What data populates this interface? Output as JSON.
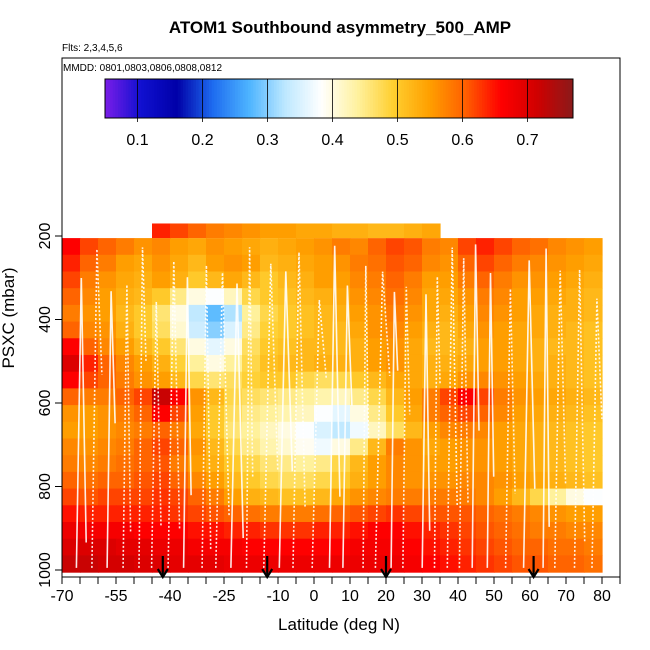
{
  "chart_data": {
    "type": "heatmap",
    "title": "ATOM1 Southbound asymmetry_500_AMP",
    "subtitle_flights": "Flts: 2,3,4,5,6",
    "subtitle_dates": "MMDD: 0801,0803,0806,0808,0812",
    "xlabel": "Latitude (deg N)",
    "ylabel": "PSXC (mbar)",
    "xlim": [
      -70,
      85
    ],
    "ylim": [
      1000,
      0
    ],
    "x_ticks": [
      -70,
      -55,
      -40,
      -25,
      -10,
      0,
      10,
      20,
      30,
      40,
      50,
      60,
      70,
      80
    ],
    "x_ticks_minor": [
      -65,
      -60,
      -50,
      -45,
      -35,
      -30,
      -20,
      -15,
      -5,
      5,
      15,
      25,
      35,
      45,
      55,
      65,
      75,
      85
    ],
    "y_ticks": [
      200,
      400,
      600,
      800,
      1000
    ],
    "colorbar": {
      "min": 0.05,
      "max": 0.77,
      "ticks": [
        0.1,
        0.2,
        0.3,
        0.4,
        0.5,
        0.6,
        0.7
      ],
      "colors": [
        "#7a1de8",
        "#1010d0",
        "#0000a8",
        "#1e6cf0",
        "#4db4ff",
        "#bde8ff",
        "#ffffff",
        "#fff2a0",
        "#ffcf30",
        "#ffa000",
        "#ff6000",
        "#ff0000",
        "#d00000",
        "#8b1a1a"
      ]
    },
    "arrows_latitude": [
      -42,
      -13,
      20,
      61
    ],
    "pressure_levels": [
      225,
      265,
      305,
      345,
      385,
      425,
      465,
      505,
      545,
      585,
      625,
      665,
      705,
      745,
      785,
      825,
      865,
      905,
      945,
      985
    ],
    "latitude_bins": [
      -67.5,
      -62.5,
      -57.5,
      -52.5,
      -47.5,
      -42.5,
      -37.5,
      -32.5,
      -27.5,
      -22.5,
      -17.5,
      -12.5,
      -7.5,
      -2.5,
      2.5,
      7.5,
      12.5,
      17.5,
      22.5,
      27.5,
      32.5,
      37.5,
      42.5,
      47.5,
      52.5,
      57.5,
      62.5,
      67.5,
      72.5,
      77.5
    ],
    "values": [
      [
        0.66,
        0.62,
        0.6,
        0.58,
        0.56,
        0.57,
        0.55,
        0.54,
        0.56,
        0.55,
        0.54,
        0.53,
        0.54,
        0.55,
        0.56,
        0.58,
        0.57,
        0.6,
        0.62,
        0.61,
        0.58,
        0.57,
        0.62,
        0.64,
        0.62,
        0.6,
        0.59,
        0.57,
        0.56,
        0.55
      ],
      [
        0.64,
        0.6,
        0.58,
        0.55,
        0.54,
        0.56,
        0.54,
        0.52,
        0.55,
        0.56,
        0.55,
        0.52,
        0.53,
        0.54,
        0.55,
        0.56,
        0.58,
        0.59,
        0.61,
        0.6,
        0.57,
        0.56,
        0.6,
        0.62,
        0.6,
        0.58,
        0.57,
        0.56,
        0.55,
        0.54
      ],
      [
        0.62,
        0.58,
        0.56,
        0.54,
        0.53,
        0.55,
        0.53,
        0.5,
        0.52,
        0.54,
        0.52,
        0.5,
        0.52,
        0.53,
        0.55,
        0.55,
        0.57,
        0.58,
        0.6,
        0.58,
        0.55,
        0.55,
        0.58,
        0.6,
        0.58,
        0.56,
        0.56,
        0.55,
        0.54,
        0.53
      ],
      [
        0.6,
        0.57,
        0.55,
        0.53,
        0.52,
        0.5,
        0.45,
        0.4,
        0.38,
        0.42,
        0.48,
        0.5,
        0.51,
        0.52,
        0.53,
        0.54,
        0.56,
        0.57,
        0.59,
        0.57,
        0.54,
        0.54,
        0.56,
        0.58,
        0.57,
        0.55,
        0.55,
        0.54,
        0.53,
        0.52
      ],
      [
        0.58,
        0.56,
        0.55,
        0.52,
        0.5,
        0.46,
        0.4,
        0.33,
        0.28,
        0.32,
        0.44,
        0.48,
        0.5,
        0.51,
        0.52,
        0.53,
        0.55,
        0.56,
        0.58,
        0.56,
        0.54,
        0.53,
        0.55,
        0.57,
        0.56,
        0.55,
        0.54,
        0.53,
        0.53,
        0.52
      ],
      [
        0.6,
        0.57,
        0.56,
        0.53,
        0.5,
        0.47,
        0.41,
        0.34,
        0.3,
        0.35,
        0.45,
        0.49,
        0.5,
        0.51,
        0.52,
        0.52,
        0.54,
        0.56,
        0.57,
        0.55,
        0.53,
        0.52,
        0.54,
        0.56,
        0.55,
        0.54,
        0.54,
        0.53,
        0.52,
        0.51
      ],
      [
        0.66,
        0.6,
        0.57,
        0.55,
        0.52,
        0.5,
        0.46,
        0.4,
        0.36,
        0.4,
        0.47,
        0.5,
        0.51,
        0.52,
        0.52,
        0.52,
        0.53,
        0.55,
        0.56,
        0.54,
        0.52,
        0.52,
        0.53,
        0.55,
        0.55,
        0.54,
        0.53,
        0.52,
        0.52,
        0.51
      ],
      [
        0.7,
        0.64,
        0.6,
        0.57,
        0.55,
        0.53,
        0.49,
        0.44,
        0.4,
        0.44,
        0.48,
        0.51,
        0.52,
        0.52,
        0.53,
        0.53,
        0.53,
        0.55,
        0.56,
        0.54,
        0.53,
        0.53,
        0.54,
        0.55,
        0.55,
        0.54,
        0.53,
        0.53,
        0.52,
        0.51
      ],
      [
        0.66,
        0.62,
        0.6,
        0.58,
        0.56,
        0.55,
        0.52,
        0.48,
        0.46,
        0.47,
        0.49,
        0.5,
        0.5,
        0.48,
        0.47,
        0.48,
        0.5,
        0.52,
        0.54,
        0.54,
        0.53,
        0.54,
        0.56,
        0.57,
        0.56,
        0.55,
        0.54,
        0.53,
        0.52,
        0.51
      ],
      [
        0.6,
        0.58,
        0.58,
        0.6,
        0.62,
        0.72,
        0.66,
        0.56,
        0.52,
        0.48,
        0.47,
        0.46,
        0.45,
        0.44,
        0.43,
        0.42,
        0.45,
        0.48,
        0.52,
        0.55,
        0.58,
        0.62,
        0.66,
        0.62,
        0.58,
        0.56,
        0.55,
        0.54,
        0.53,
        0.52
      ],
      [
        0.56,
        0.55,
        0.56,
        0.58,
        0.6,
        0.66,
        0.62,
        0.55,
        0.5,
        0.47,
        0.45,
        0.44,
        0.43,
        0.42,
        0.38,
        0.36,
        0.4,
        0.45,
        0.5,
        0.54,
        0.58,
        0.6,
        0.62,
        0.6,
        0.57,
        0.55,
        0.54,
        0.53,
        0.52,
        0.51
      ],
      [
        0.55,
        0.55,
        0.56,
        0.57,
        0.58,
        0.6,
        0.58,
        0.54,
        0.5,
        0.46,
        0.44,
        0.42,
        0.4,
        0.38,
        0.35,
        0.33,
        0.37,
        0.42,
        0.47,
        0.52,
        0.55,
        0.57,
        0.58,
        0.57,
        0.55,
        0.54,
        0.53,
        0.52,
        0.51,
        0.5
      ],
      [
        0.57,
        0.56,
        0.57,
        0.58,
        0.6,
        0.62,
        0.6,
        0.56,
        0.52,
        0.48,
        0.45,
        0.43,
        0.41,
        0.39,
        0.37,
        0.4,
        0.45,
        0.52,
        0.58,
        0.56,
        0.54,
        0.55,
        0.56,
        0.56,
        0.55,
        0.54,
        0.53,
        0.52,
        0.51,
        0.5
      ],
      [
        0.58,
        0.57,
        0.58,
        0.59,
        0.6,
        0.61,
        0.58,
        0.55,
        0.53,
        0.5,
        0.48,
        0.46,
        0.45,
        0.44,
        0.45,
        0.48,
        0.52,
        0.55,
        0.57,
        0.56,
        0.55,
        0.55,
        0.56,
        0.56,
        0.55,
        0.54,
        0.53,
        0.52,
        0.51,
        0.5
      ],
      [
        0.6,
        0.59,
        0.6,
        0.6,
        0.61,
        0.62,
        0.6,
        0.57,
        0.55,
        0.52,
        0.5,
        0.48,
        0.47,
        0.47,
        0.48,
        0.5,
        0.53,
        0.55,
        0.57,
        0.56,
        0.56,
        0.56,
        0.57,
        0.57,
        0.56,
        0.55,
        0.54,
        0.53,
        0.52,
        0.51
      ],
      [
        0.62,
        0.61,
        0.62,
        0.62,
        0.62,
        0.63,
        0.62,
        0.6,
        0.58,
        0.55,
        0.53,
        0.52,
        0.51,
        0.51,
        0.52,
        0.54,
        0.56,
        0.57,
        0.58,
        0.58,
        0.58,
        0.58,
        0.58,
        0.57,
        0.55,
        0.52,
        0.48,
        0.44,
        0.4,
        0.38
      ],
      [
        0.65,
        0.64,
        0.64,
        0.64,
        0.64,
        0.64,
        0.63,
        0.62,
        0.61,
        0.6,
        0.59,
        0.58,
        0.58,
        0.58,
        0.59,
        0.6,
        0.61,
        0.62,
        0.63,
        0.62,
        0.61,
        0.61,
        0.61,
        0.6,
        0.59,
        0.58,
        0.57,
        0.56,
        0.55,
        0.55
      ],
      [
        0.68,
        0.67,
        0.67,
        0.67,
        0.66,
        0.66,
        0.66,
        0.65,
        0.65,
        0.64,
        0.64,
        0.63,
        0.63,
        0.63,
        0.64,
        0.64,
        0.65,
        0.66,
        0.66,
        0.65,
        0.64,
        0.63,
        0.62,
        0.61,
        0.6,
        0.59,
        0.58,
        0.58,
        0.57,
        0.57
      ],
      [
        0.7,
        0.7,
        0.7,
        0.69,
        0.69,
        0.68,
        0.68,
        0.67,
        0.67,
        0.67,
        0.66,
        0.66,
        0.66,
        0.66,
        0.66,
        0.66,
        0.67,
        0.67,
        0.67,
        0.66,
        0.65,
        0.64,
        0.63,
        0.62,
        0.61,
        0.6,
        0.6,
        0.59,
        0.59,
        0.58
      ],
      [
        0.72,
        0.72,
        0.71,
        0.71,
        0.7,
        0.7,
        0.69,
        0.69,
        0.69,
        0.68,
        0.68,
        0.68,
        0.68,
        0.68,
        0.68,
        0.68,
        0.68,
        0.68,
        0.68,
        0.67,
        0.66,
        0.65,
        0.64,
        0.63,
        0.62,
        0.61,
        0.61,
        0.6,
        0.6,
        0.59
      ]
    ],
    "top_band": {
      "pressure_range": [
        170,
        205
      ],
      "lat_range": [
        -45,
        35
      ],
      "values": [
        0.64,
        0.62,
        0.6,
        0.58,
        0.57,
        0.56,
        0.55,
        0.55,
        0.54,
        0.54,
        0.53,
        0.53,
        0.52,
        0.52,
        0.53,
        0.54
      ]
    },
    "grid": false,
    "legend": "top"
  }
}
